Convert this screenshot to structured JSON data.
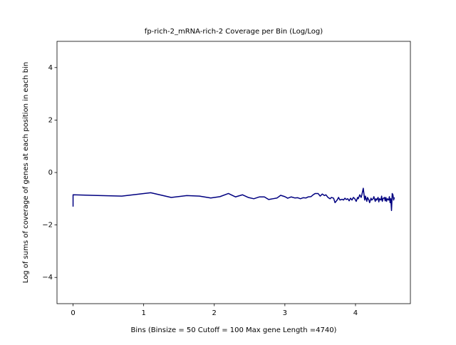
{
  "chart_data": {
    "type": "line",
    "title": "fp-rich-2_mRNA-rich-2 Coverage per Bin (Log/Log)",
    "xlabel": "Bins  (Binsize = 50 Cutoff = 100 Max gene Length =4740)",
    "ylabel": "Log of sums of coverage of genes at each position in each bin",
    "color": "#000080",
    "x": [
      0,
      0,
      0.69,
      1.1,
      1.39,
      1.61,
      1.79,
      1.95,
      2.08,
      2.2,
      2.3,
      2.4,
      2.48,
      2.56,
      2.64,
      2.71,
      2.77,
      2.83,
      2.89,
      2.94,
      3.0,
      3.04,
      3.09,
      3.14,
      3.18,
      3.22,
      3.26,
      3.3,
      3.33,
      3.37,
      3.4,
      3.43,
      3.47,
      3.5,
      3.53,
      3.56,
      3.58,
      3.61,
      3.64,
      3.66,
      3.69,
      3.71,
      3.74,
      3.76,
      3.78,
      3.81,
      3.83,
      3.85,
      3.87,
      3.89,
      3.91,
      3.93,
      3.95,
      3.97,
      3.99,
      4.01,
      4.03,
      4.04,
      4.06,
      4.08,
      4.09,
      4.11,
      4.13,
      4.14,
      4.16,
      4.17,
      4.19,
      4.2,
      4.22,
      4.23,
      4.25,
      4.26,
      4.28,
      4.29,
      4.3,
      4.32,
      4.33,
      4.34,
      4.36,
      4.37,
      4.38,
      4.39,
      4.41,
      4.42,
      4.43,
      4.44,
      4.45,
      4.47,
      4.48,
      4.49,
      4.5,
      4.51,
      4.52,
      4.53,
      4.54,
      4.55
    ],
    "values": [
      -1.3,
      -0.85,
      -0.9,
      -0.77,
      -0.95,
      -0.88,
      -0.9,
      -0.97,
      -0.92,
      -0.8,
      -0.93,
      -0.85,
      -0.95,
      -1.0,
      -0.93,
      -0.93,
      -1.03,
      -1.0,
      -0.97,
      -0.87,
      -0.92,
      -0.98,
      -0.93,
      -0.97,
      -0.96,
      -1.0,
      -0.96,
      -0.97,
      -0.93,
      -0.92,
      -0.85,
      -0.8,
      -0.8,
      -0.9,
      -0.82,
      -0.88,
      -0.85,
      -0.95,
      -1.0,
      -0.95,
      -0.98,
      -1.15,
      -1.05,
      -0.95,
      -1.05,
      -1.02,
      -1.05,
      -0.98,
      -1.03,
      -1.0,
      -1.08,
      -0.98,
      -1.05,
      -0.95,
      -1.0,
      -1.1,
      -0.95,
      -1.0,
      -0.85,
      -0.95,
      -0.85,
      -0.6,
      -1.05,
      -0.9,
      -1.1,
      -0.95,
      -1.05,
      -1.15,
      -0.98,
      -1.05,
      -1.0,
      -0.92,
      -1.1,
      -1.0,
      -1.05,
      -0.95,
      -1.12,
      -1.0,
      -1.05,
      -0.9,
      -1.1,
      -1.0,
      -0.95,
      -1.08,
      -0.95,
      -1.1,
      -1.0,
      -1.05,
      -0.92,
      -1.15,
      -1.0,
      -1.45,
      -0.8,
      -0.85,
      -1.05,
      -0.95
    ],
    "xlim": [
      -0.2275,
      4.7775
    ],
    "ylim": [
      -5,
      5
    ],
    "xticks": [
      0,
      1,
      2,
      3,
      4
    ],
    "yticks": [
      {
        "value": -4,
        "label": "−4"
      },
      {
        "value": -2,
        "label": "−2"
      },
      0,
      2,
      4
    ]
  }
}
